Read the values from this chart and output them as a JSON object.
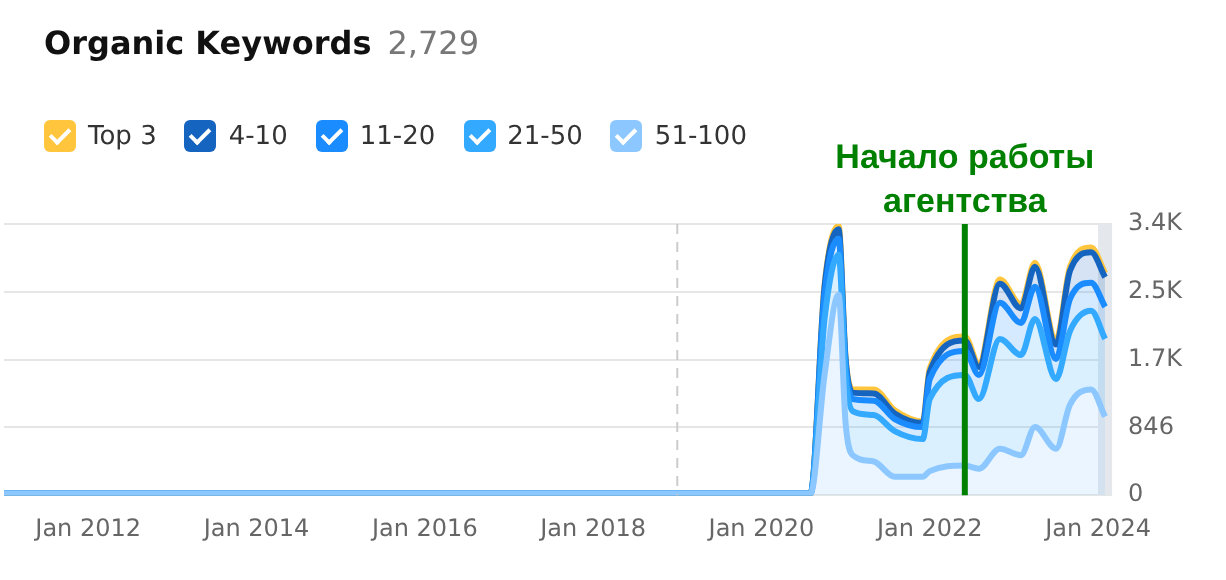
{
  "chart_data": {
    "type": "area",
    "title": "Organic Keywords",
    "subtitle": "2,729",
    "stacked": true,
    "legend": "top left",
    "grid": "y",
    "marker": "none",
    "x": [
      "2011-01",
      "2020-08",
      "2020-10",
      "2020-12",
      "2021-01",
      "2021-02",
      "2021-05",
      "2021-08",
      "2021-12",
      "2022-01",
      "2022-06",
      "2022-08",
      "2022-11",
      "2023-02",
      "2023-04",
      "2023-07",
      "2023-09",
      "2023-12",
      "2024-02"
    ],
    "series": [
      {
        "name": "51-100",
        "color": "#8cc8ff",
        "values": [
          20,
          20,
          1500,
          2500,
          900,
          500,
          420,
          230,
          230,
          300,
          370,
          330,
          580,
          500,
          850,
          580,
          1130,
          1320,
          980
        ]
      },
      {
        "name": "21-50",
        "color": "#33aaff",
        "values": [
          0,
          0,
          700,
          500,
          600,
          550,
          580,
          570,
          470,
          900,
          1130,
          870,
          1370,
          1250,
          1350,
          870,
          920,
          980,
          970
        ]
      },
      {
        "name": "11-20",
        "color": "#1a8cff",
        "values": [
          0,
          0,
          300,
          200,
          150,
          150,
          180,
          150,
          150,
          250,
          300,
          300,
          450,
          400,
          400,
          250,
          400,
          350,
          400
        ]
      },
      {
        "name": "4-10",
        "color": "#1565c0",
        "values": [
          0,
          0,
          100,
          120,
          50,
          80,
          90,
          70,
          50,
          90,
          130,
          100,
          240,
          180,
          250,
          180,
          350,
          380,
          370
        ]
      },
      {
        "name": "Top 3",
        "color": "#ffc53d",
        "values": [
          0,
          0,
          20,
          40,
          20,
          40,
          50,
          40,
          20,
          40,
          50,
          40,
          50,
          50,
          50,
          50,
          50,
          60,
          50
        ]
      }
    ],
    "xlim": [
      "2011-01",
      "2024-03"
    ],
    "xticks": [
      {
        "value": "2012-01",
        "label": "Jan 2012"
      },
      {
        "value": "2014-01",
        "label": "Jan 2014"
      },
      {
        "value": "2016-01",
        "label": "Jan 2016"
      },
      {
        "value": "2018-01",
        "label": "Jan 2018"
      },
      {
        "value": "2020-01",
        "label": "Jan 2020"
      },
      {
        "value": "2022-01",
        "label": "Jan 2022"
      },
      {
        "value": "2024-01",
        "label": "Jan 2024"
      }
    ],
    "ylim": [
      0,
      3384
    ],
    "yticks": [
      0,
      846,
      {
        "value": 1692,
        "label": "1.7K"
      },
      {
        "value": 2538,
        "label": "2.5K"
      },
      {
        "value": 3384,
        "label": "3.4K"
      }
    ],
    "ref_lines": [
      {
        "axis": "x",
        "value": "2019-01",
        "color": "#cccccc",
        "line_style": "dashed"
      },
      {
        "axis": "x",
        "value": "2022-06",
        "label": "Начало работы агентства",
        "color": "#008000",
        "line_style": "solid"
      }
    ],
    "bands": [
      {
        "axis": "x",
        "from": "2024-01",
        "to": "2024-03",
        "color": "#e4e7ec"
      }
    ]
  }
}
